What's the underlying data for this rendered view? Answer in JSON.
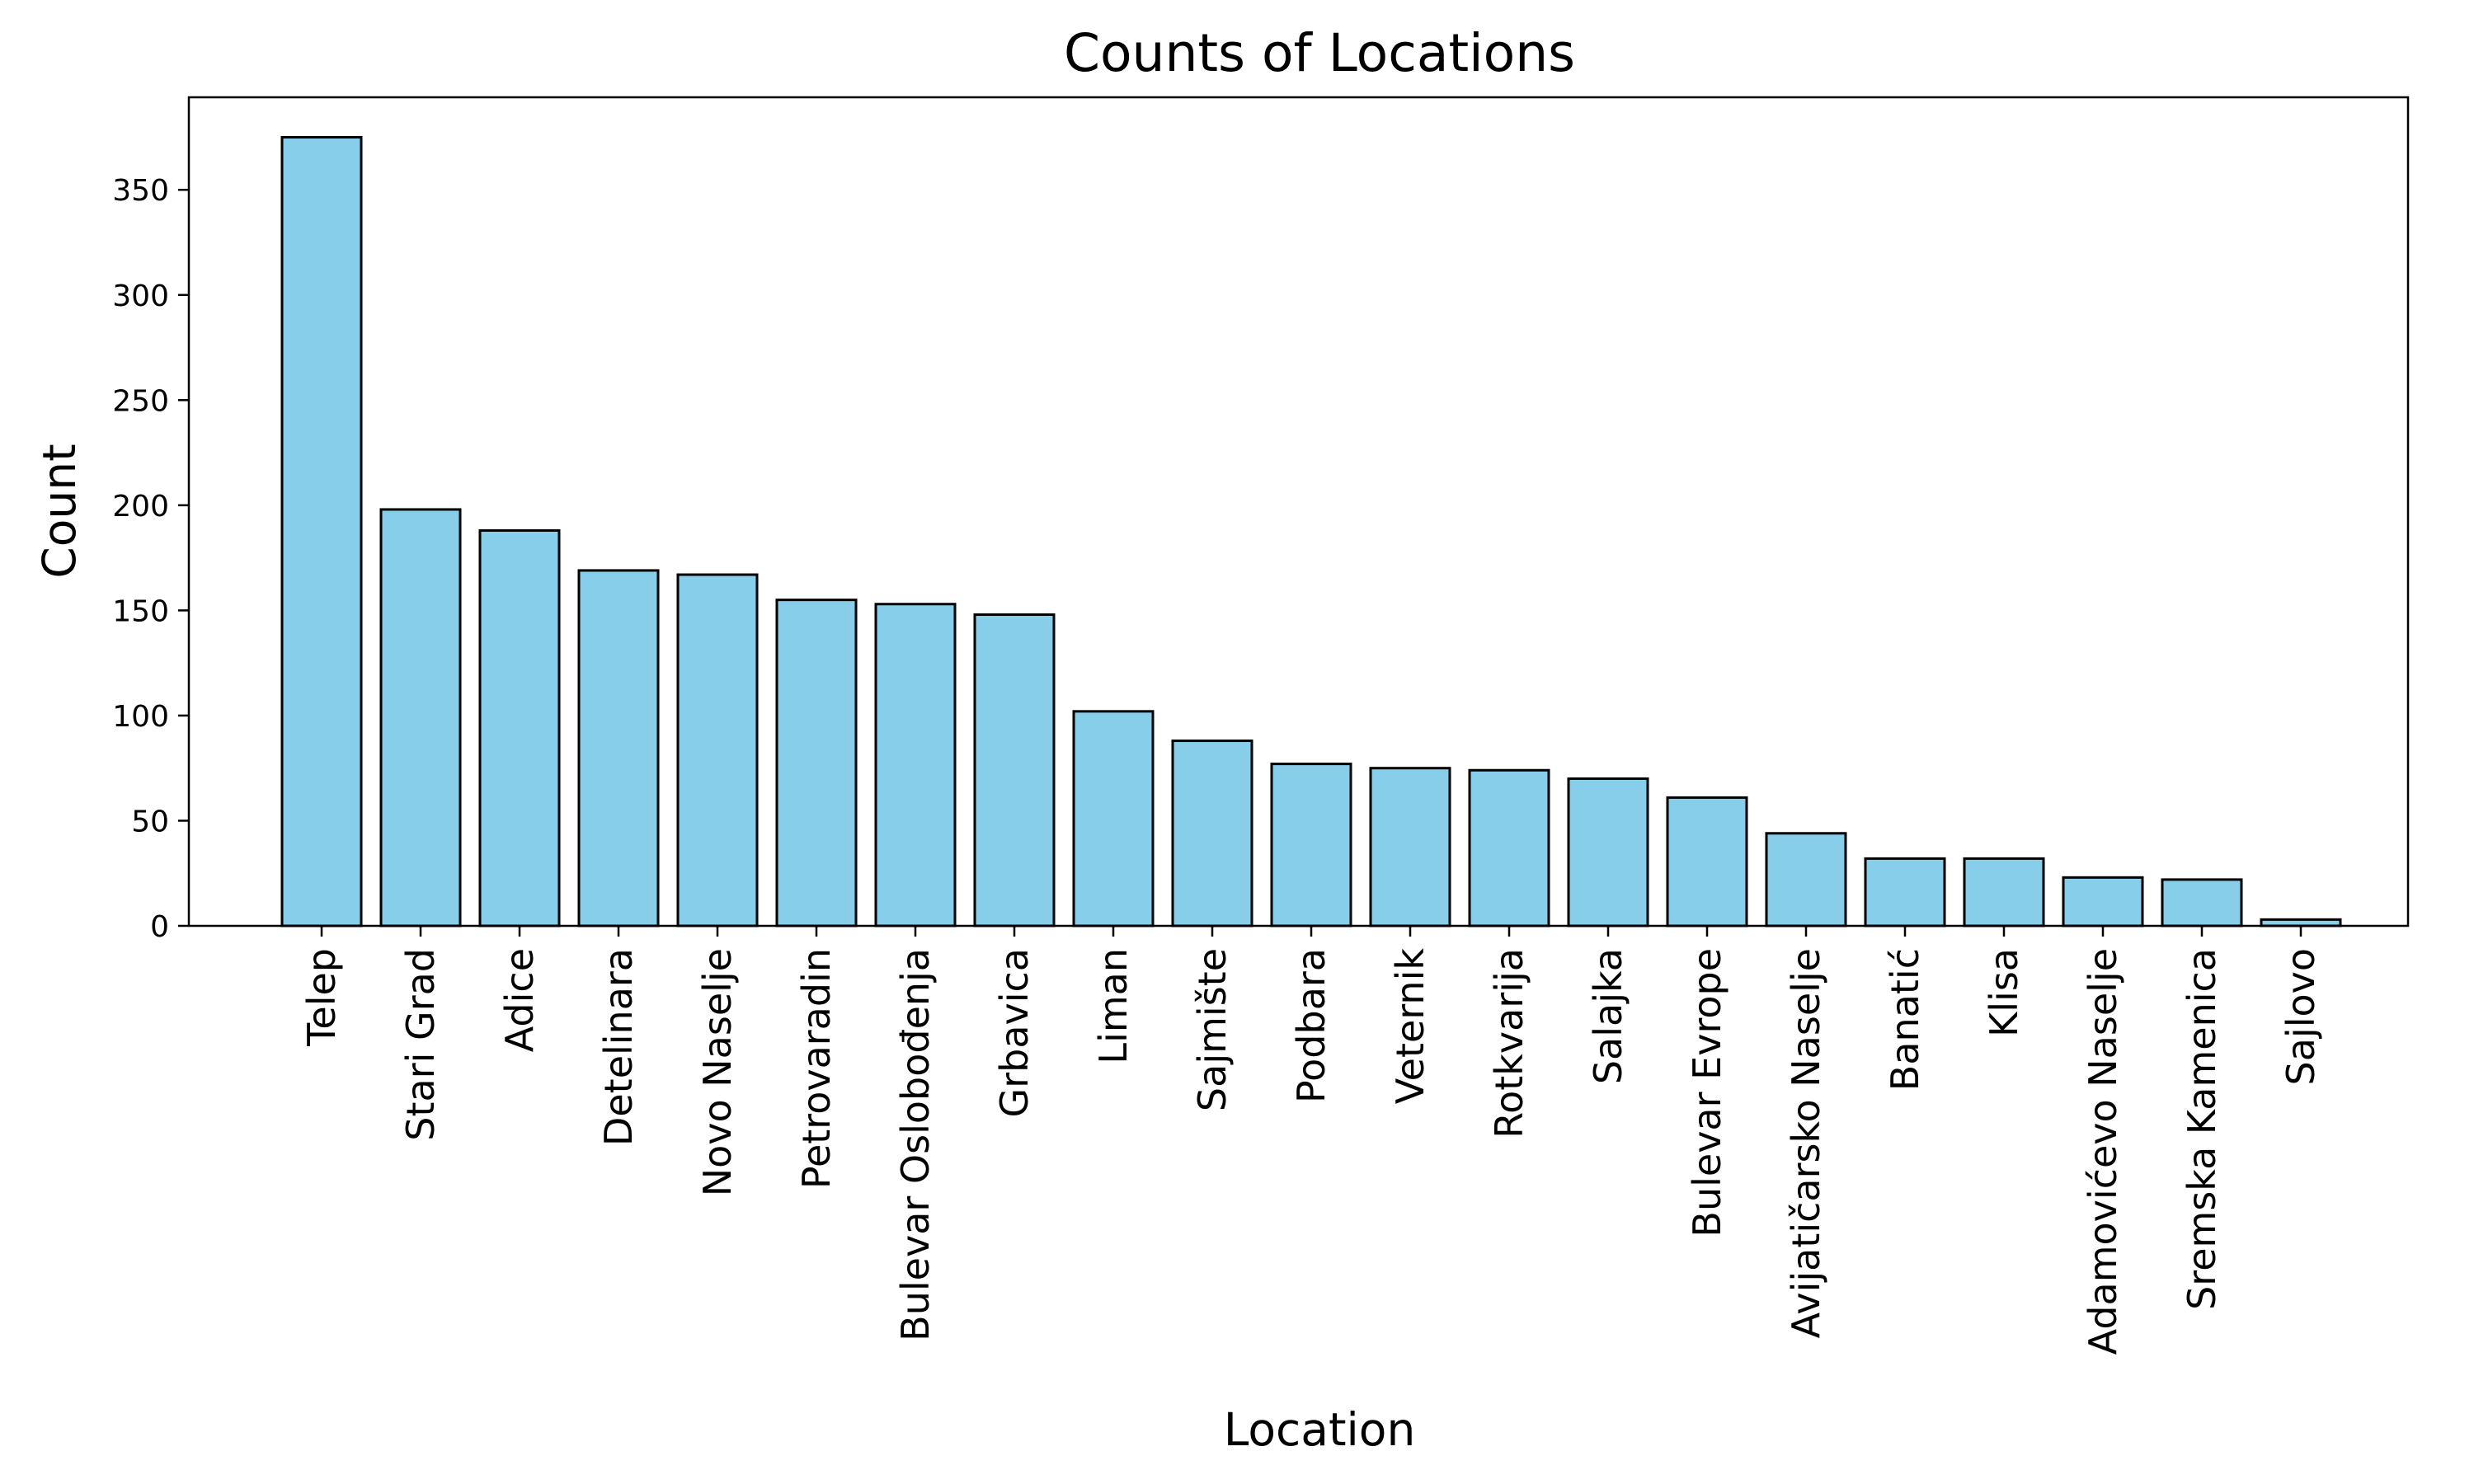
{
  "chart_data": {
    "type": "bar",
    "title": "Counts of Locations",
    "xlabel": "Location",
    "ylabel": "Count",
    "categories": [
      "Telep",
      "Stari Grad",
      "Adice",
      "Detelinara",
      "Novo Naselje",
      "Petrovaradin",
      "Bulevar Oslobođenja",
      "Grbavica",
      "Liman",
      "Sajmište",
      "Podbara",
      "Veternik",
      "Rotkvarija",
      "Salajka",
      "Bulevar Evrope",
      "Avijatičarsko Naselje",
      "Banatić",
      "Klisa",
      "Adamovićevo Naselje",
      "Sremska Kamenica",
      "Sajlovo"
    ],
    "values": [
      375,
      198,
      188,
      169,
      167,
      155,
      153,
      148,
      102,
      88,
      77,
      75,
      74,
      70,
      61,
      44,
      32,
      32,
      23,
      22,
      3
    ],
    "yticks": [
      0,
      50,
      100,
      150,
      200,
      250,
      300,
      350
    ],
    "ylim": [
      0,
      394
    ],
    "grid": false,
    "bar_color": "#87CEEB",
    "edge_color": "#000000"
  }
}
